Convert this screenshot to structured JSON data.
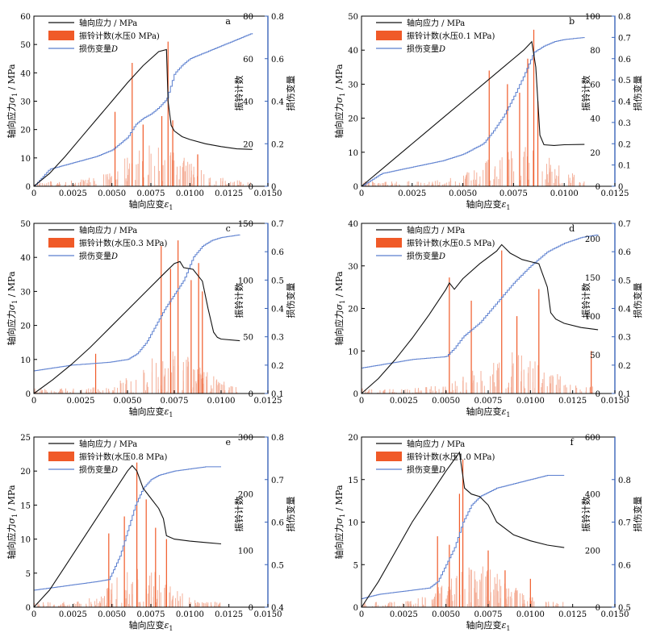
{
  "legend": {
    "stress": "轴向应力 / MPa",
    "damage_prefix": "损伤变量",
    "damage_symbol": "D"
  },
  "axis_labels": {
    "x_prefix": "轴向应变",
    "x_symbol": "ε",
    "x_sub": "1",
    "y_left_prefix": "轴向应力",
    "y_left_symbol": "σ",
    "y_left_sub": "1",
    "y_left_suffix": " / MPa",
    "y_right1": "振铃计数",
    "y_right2": "损伤变量"
  },
  "colors": {
    "stress": "#111111",
    "counts": "#f05a28",
    "counts_bar": "#f4b09a",
    "damage": "#5b7fcf",
    "right_axis": "#3a64b8"
  },
  "chart_data": [
    {
      "type": "line",
      "label": "a",
      "count_label": "振铃计数(水压0 MPa)",
      "xlim": [
        0,
        0.015
      ],
      "x_ticks": [
        "0",
        "0.0025",
        "0.0050",
        "0.0075",
        "0.0100",
        "0.0125",
        "0.0150"
      ],
      "ylim_left": [
        0,
        60
      ],
      "y_left_ticks": [
        "0",
        "10",
        "20",
        "30",
        "40",
        "50",
        "60"
      ],
      "ylim_right1": [
        0,
        80
      ],
      "y_right1_ticks": [
        "0",
        "20",
        "40",
        "60",
        "80"
      ],
      "ylim_right2": [
        0,
        0.8
      ],
      "y_right2_ticks": [
        "0",
        "0.2",
        "0.4",
        "0.6",
        "0.8"
      ],
      "stress": {
        "x": [
          0,
          0.001,
          0.002,
          0.003,
          0.004,
          0.005,
          0.006,
          0.007,
          0.008,
          0.0085,
          0.0086,
          0.0088,
          0.009,
          0.0095,
          0.01,
          0.011,
          0.012,
          0.013,
          0.014
        ],
        "y": [
          0,
          4.5,
          10.5,
          17,
          23.5,
          30,
          36.5,
          42.5,
          47.5,
          48.2,
          30,
          21.5,
          19.5,
          17.5,
          16.5,
          15,
          14,
          13.2,
          13
        ]
      },
      "damage": {
        "x": [
          0,
          0.001,
          0.002,
          0.003,
          0.004,
          0.005,
          0.006,
          0.0065,
          0.007,
          0.0075,
          0.008,
          0.0085,
          0.009,
          0.0095,
          0.01,
          0.011,
          0.012,
          0.013,
          0.014
        ],
        "y": [
          0,
          0.08,
          0.1,
          0.12,
          0.14,
          0.17,
          0.23,
          0.29,
          0.32,
          0.34,
          0.37,
          0.41,
          0.53,
          0.57,
          0.6,
          0.63,
          0.66,
          0.69,
          0.72
        ]
      },
      "peaks": [
        {
          "x": 0.0052,
          "v": 35
        },
        {
          "x": 0.0063,
          "v": 58
        },
        {
          "x": 0.007,
          "v": 29
        },
        {
          "x": 0.0082,
          "v": 33
        },
        {
          "x": 0.0086,
          "v": 68
        },
        {
          "x": 0.0089,
          "v": 31
        },
        {
          "x": 0.0105,
          "v": 15
        }
      ]
    },
    {
      "type": "line",
      "label": "b",
      "count_label": "振铃计数(水压0.1 MPa)",
      "xlim": [
        0,
        0.0125
      ],
      "x_ticks": [
        "0",
        "0.0025",
        "0.0050",
        "0.0075",
        "0.0100",
        "0.0125"
      ],
      "ylim_left": [
        0,
        50
      ],
      "y_left_ticks": [
        "0",
        "10",
        "20",
        "30",
        "40",
        "50"
      ],
      "ylim_right1": [
        0,
        100
      ],
      "y_right1_ticks": [
        "0",
        "20",
        "40",
        "60",
        "80",
        "100"
      ],
      "ylim_right2": [
        0,
        0.8
      ],
      "y_right2_ticks": [
        "0",
        "0.1",
        "0.2",
        "0.3",
        "0.4",
        "0.5",
        "0.6",
        "0.7",
        "0.8"
      ],
      "stress": {
        "x": [
          0,
          0.001,
          0.002,
          0.003,
          0.004,
          0.005,
          0.006,
          0.007,
          0.008,
          0.0084,
          0.0086,
          0.0088,
          0.009,
          0.0095,
          0.01,
          0.011
        ],
        "y": [
          0,
          5,
          10,
          15,
          20,
          25,
          30,
          35,
          40,
          42.5,
          35,
          15,
          12.2,
          12,
          12.2,
          12.3
        ]
      },
      "damage": {
        "x": [
          0,
          0.001,
          0.002,
          0.003,
          0.004,
          0.005,
          0.006,
          0.0065,
          0.007,
          0.0075,
          0.008,
          0.0085,
          0.009,
          0.0095,
          0.01,
          0.011
        ],
        "y": [
          0,
          0.06,
          0.08,
          0.1,
          0.12,
          0.15,
          0.2,
          0.26,
          0.33,
          0.42,
          0.52,
          0.63,
          0.66,
          0.68,
          0.69,
          0.7
        ]
      },
      "peaks": [
        {
          "x": 0.0063,
          "v": 68
        },
        {
          "x": 0.0072,
          "v": 60
        },
        {
          "x": 0.0078,
          "v": 55
        },
        {
          "x": 0.0082,
          "v": 75
        },
        {
          "x": 0.0085,
          "v": 92
        },
        {
          "x": 0.0087,
          "v": 50
        }
      ]
    },
    {
      "type": "line",
      "label": "c",
      "count_label": "振铃计数(水压0.3 MPa)",
      "xlim": [
        0,
        0.0125
      ],
      "x_ticks": [
        "0",
        "0.0025",
        "0.0050",
        "0.0075",
        "0.0100",
        "0.0125"
      ],
      "ylim_left": [
        0,
        50
      ],
      "y_left_ticks": [
        "0",
        "10",
        "20",
        "30",
        "40",
        "50"
      ],
      "ylim_right1": [
        0,
        150
      ],
      "y_right1_ticks": [
        "0",
        "50",
        "100",
        "150"
      ],
      "ylim_right2": [
        0.1,
        0.7
      ],
      "y_right2_ticks": [
        "0.1",
        "0.2",
        "0.3",
        "0.4",
        "0.5",
        "0.6",
        "0.7"
      ],
      "stress": {
        "x": [
          0,
          0.001,
          0.002,
          0.003,
          0.004,
          0.005,
          0.006,
          0.007,
          0.0075,
          0.0078,
          0.008,
          0.0085,
          0.009,
          0.0093,
          0.0096,
          0.0098,
          0.01,
          0.011
        ],
        "y": [
          0,
          4,
          8.5,
          13.5,
          19,
          24.5,
          30,
          35.5,
          38.2,
          38.8,
          37,
          36.5,
          33,
          25,
          18,
          16.5,
          16,
          15.5
        ]
      },
      "damage": {
        "x": [
          0,
          0.001,
          0.002,
          0.003,
          0.004,
          0.005,
          0.0055,
          0.006,
          0.0065,
          0.007,
          0.0075,
          0.008,
          0.0085,
          0.009,
          0.0095,
          0.01,
          0.011
        ],
        "y": [
          0.18,
          0.19,
          0.2,
          0.205,
          0.21,
          0.22,
          0.24,
          0.28,
          0.34,
          0.4,
          0.45,
          0.5,
          0.58,
          0.62,
          0.64,
          0.65,
          0.66
        ]
      },
      "peaks": [
        {
          "x": 0.0033,
          "v": 35
        },
        {
          "x": 0.0068,
          "v": 130
        },
        {
          "x": 0.0073,
          "v": 110
        },
        {
          "x": 0.0077,
          "v": 135
        },
        {
          "x": 0.0084,
          "v": 100
        },
        {
          "x": 0.0088,
          "v": 115
        },
        {
          "x": 0.009,
          "v": 90
        }
      ]
    },
    {
      "type": "line",
      "label": "d",
      "count_label": "振铃计数(水压0.5 MPa)",
      "xlim": [
        0,
        0.015
      ],
      "x_ticks": [
        "0",
        "0.0025",
        "0.0050",
        "0.0075",
        "0.0100",
        "0.0125",
        "0.0150"
      ],
      "ylim_left": [
        0,
        40
      ],
      "y_left_ticks": [
        "0",
        "10",
        "20",
        "30",
        "40"
      ],
      "ylim_right1": [
        0,
        220
      ],
      "y_right1_ticks": [
        "0",
        "50",
        "100",
        "150",
        "200"
      ],
      "ylim_right2": [
        0.1,
        0.7
      ],
      "y_right2_ticks": [
        "0.1",
        "0.2",
        "0.3",
        "0.4",
        "0.5",
        "0.6",
        "0.7"
      ],
      "stress": {
        "x": [
          0,
          0.001,
          0.002,
          0.003,
          0.004,
          0.005,
          0.0052,
          0.0055,
          0.006,
          0.007,
          0.008,
          0.0083,
          0.0088,
          0.0095,
          0.01,
          0.0105,
          0.011,
          0.0112,
          0.0115,
          0.012,
          0.013,
          0.014
        ],
        "y": [
          0,
          3.5,
          8,
          13,
          18.5,
          24.5,
          26,
          24.5,
          27,
          30.5,
          33.5,
          35,
          33,
          31.5,
          31,
          30.5,
          25,
          19,
          17.5,
          16.5,
          15.5,
          15
        ]
      },
      "damage": {
        "x": [
          0,
          0.001,
          0.002,
          0.003,
          0.004,
          0.005,
          0.0055,
          0.006,
          0.007,
          0.008,
          0.009,
          0.01,
          0.011,
          0.012,
          0.013,
          0.014
        ],
        "y": [
          0.19,
          0.2,
          0.21,
          0.22,
          0.225,
          0.23,
          0.26,
          0.3,
          0.35,
          0.42,
          0.49,
          0.55,
          0.6,
          0.63,
          0.65,
          0.66
        ]
      },
      "peaks": [
        {
          "x": 0.0052,
          "v": 150
        },
        {
          "x": 0.0065,
          "v": 120
        },
        {
          "x": 0.0083,
          "v": 185
        },
        {
          "x": 0.0092,
          "v": 100
        },
        {
          "x": 0.0105,
          "v": 135
        },
        {
          "x": 0.0136,
          "v": 55
        }
      ]
    },
    {
      "type": "line",
      "label": "e",
      "count_label": "振铃计数(水压0.8 MPa)",
      "xlim": [
        0,
        0.015
      ],
      "x_ticks": [
        "0",
        "0.0025",
        "0.0050",
        "0.0075",
        "0.0100",
        "0.0125",
        "0.0150"
      ],
      "ylim_left": [
        0,
        25
      ],
      "y_left_ticks": [
        "0",
        "5",
        "10",
        "15",
        "20",
        "25"
      ],
      "ylim_right1": [
        0,
        300
      ],
      "y_right1_ticks": [
        "0",
        "100",
        "200",
        "300"
      ],
      "ylim_right2": [
        0.4,
        0.8
      ],
      "y_right2_ticks": [
        "0.4",
        "0.5",
        "0.6",
        "0.7",
        "0.8"
      ],
      "stress": {
        "x": [
          0,
          0.001,
          0.002,
          0.003,
          0.004,
          0.005,
          0.006,
          0.0063,
          0.0066,
          0.007,
          0.0075,
          0.008,
          0.0083,
          0.0085,
          0.009,
          0.01,
          0.011,
          0.012
        ],
        "y": [
          0,
          2.5,
          6,
          9.5,
          13,
          16.5,
          20,
          20.8,
          20,
          17.5,
          16,
          14.5,
          13,
          10.5,
          10,
          9.7,
          9.5,
          9.3
        ]
      },
      "damage": {
        "x": [
          0,
          0.001,
          0.002,
          0.003,
          0.004,
          0.0048,
          0.005,
          0.0055,
          0.006,
          0.0065,
          0.007,
          0.0075,
          0.008,
          0.009,
          0.01,
          0.011,
          0.012
        ],
        "y": [
          0.44,
          0.445,
          0.45,
          0.455,
          0.46,
          0.465,
          0.48,
          0.52,
          0.58,
          0.64,
          0.68,
          0.7,
          0.71,
          0.72,
          0.725,
          0.73,
          0.73
        ]
      },
      "peaks": [
        {
          "x": 0.0048,
          "v": 130
        },
        {
          "x": 0.0058,
          "v": 160
        },
        {
          "x": 0.0066,
          "v": 255
        },
        {
          "x": 0.0072,
          "v": 190
        },
        {
          "x": 0.0078,
          "v": 140
        },
        {
          "x": 0.0085,
          "v": 120
        }
      ]
    },
    {
      "type": "line",
      "label": "f",
      "count_label": "振铃计数(水压1.0 MPa)",
      "xlim": [
        0,
        0.015
      ],
      "x_ticks": [
        "0",
        "0.0025",
        "0.0050",
        "0.0075",
        "0.0100",
        "0.0125",
        "0.0150"
      ],
      "ylim_left": [
        0,
        20
      ],
      "y_left_ticks": [
        "0",
        "5",
        "10",
        "15",
        "20"
      ],
      "ylim_right1": [
        0,
        600
      ],
      "y_right1_ticks": [
        "0",
        "200",
        "400",
        "600"
      ],
      "ylim_right2": [
        0.5,
        0.9
      ],
      "y_right2_ticks": [
        "0.5",
        "0.6",
        "0.7",
        "0.8"
      ],
      "stress": {
        "x": [
          0,
          0.001,
          0.002,
          0.003,
          0.004,
          0.005,
          0.0058,
          0.0061,
          0.0065,
          0.007,
          0.0075,
          0.008,
          0.009,
          0.01,
          0.011,
          0.012
        ],
        "y": [
          0,
          3,
          6.5,
          10,
          13,
          16,
          18.2,
          14,
          13.3,
          13,
          12,
          10,
          8.5,
          7.8,
          7.3,
          7
        ]
      },
      "damage": {
        "x": [
          0,
          0.001,
          0.002,
          0.003,
          0.004,
          0.0045,
          0.005,
          0.0055,
          0.006,
          0.0065,
          0.007,
          0.008,
          0.009,
          0.01,
          0.011,
          0.012
        ],
        "y": [
          0.52,
          0.53,
          0.535,
          0.54,
          0.545,
          0.56,
          0.6,
          0.64,
          0.7,
          0.74,
          0.76,
          0.78,
          0.79,
          0.8,
          0.81,
          0.81
        ]
      },
      "peaks": [
        {
          "x": 0.0045,
          "v": 250
        },
        {
          "x": 0.0052,
          "v": 220
        },
        {
          "x": 0.0058,
          "v": 400
        },
        {
          "x": 0.006,
          "v": 520
        },
        {
          "x": 0.0075,
          "v": 200
        },
        {
          "x": 0.0085,
          "v": 130
        },
        {
          "x": 0.01,
          "v": 100
        }
      ]
    }
  ]
}
